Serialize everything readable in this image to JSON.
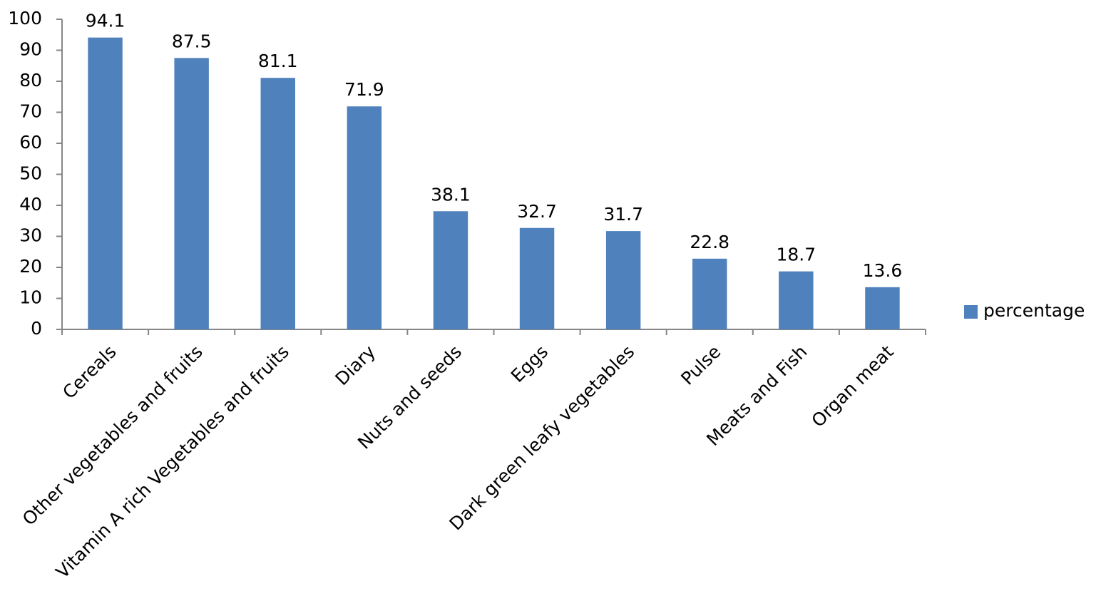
{
  "chart_data": {
    "type": "bar",
    "categories": [
      "Cereals",
      "Other vegetables and fruits",
      "Vitamin A rich Vegetables and fruits",
      "Diary",
      "Nuts and seeds",
      "Eggs",
      "Dark green leafy vegetables",
      "Pulse",
      "Meats and Fish",
      "Organ meat"
    ],
    "series": [
      {
        "name": "percentage",
        "color": "#4f81bd",
        "values": [
          94.1,
          87.5,
          81.1,
          71.9,
          38.1,
          32.7,
          31.7,
          22.8,
          18.7,
          13.6
        ]
      }
    ],
    "ylim": [
      0,
      100
    ],
    "yticks": [
      0,
      10,
      20,
      30,
      40,
      50,
      60,
      70,
      80,
      90,
      100
    ],
    "grid": false,
    "legend": "right",
    "data_labels": true
  }
}
